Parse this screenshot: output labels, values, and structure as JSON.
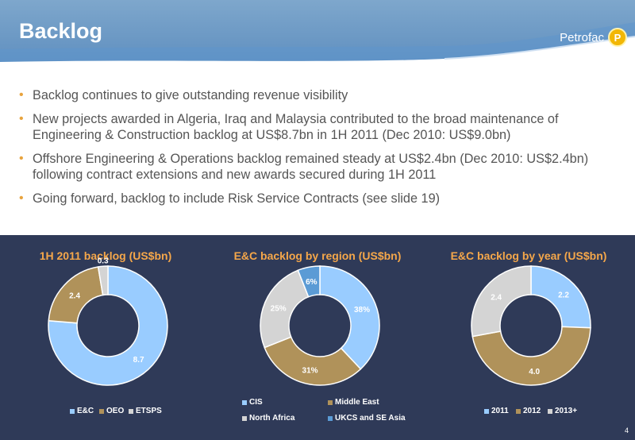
{
  "header": {
    "title": "Backlog",
    "brand": "Petrofac",
    "logo_letter": "P"
  },
  "bullets": [
    "Backlog continues to give outstanding revenue visibility",
    "New projects awarded in Algeria, Iraq and Malaysia contributed to the broad maintenance of Engineering & Construction backlog at US$8.7bn in 1H 2011 (Dec 2010: US$9.0bn)",
    "Offshore Engineering & Operations backlog remained steady at US$2.4bn (Dec 2010: US$2.4bn) following contract extensions and new awards secured during 1H 2011",
    "Going forward, backlog to include Risk Service Contracts (see slide 19)"
  ],
  "colors": {
    "blue": "#99ccff",
    "tan": "#b0925a",
    "gray": "#d4d4d4",
    "midblue": "#5b9bd5",
    "accent": "#f5a74a",
    "panel": "#2f3a58"
  },
  "chart_data": [
    {
      "type": "pie",
      "title": "1H 2011 backlog (US$bn)",
      "categories": [
        "E&C",
        "OEO",
        "ETSPS"
      ],
      "values": [
        8.7,
        2.4,
        0.3
      ],
      "labels": [
        "8.7",
        "2.4",
        "0.3"
      ]
    },
    {
      "type": "pie",
      "title": "E&C backlog by region (US$bn)",
      "categories": [
        "CIS",
        "Middle East",
        "North Africa",
        "UKCS and SE Asia"
      ],
      "values": [
        38,
        31,
        25,
        6
      ],
      "labels": [
        "38%",
        "31%",
        "25%",
        "6%"
      ]
    },
    {
      "type": "pie",
      "title": "E&C backlog by year (US$bn)",
      "categories": [
        "2011",
        "2012",
        "2013+"
      ],
      "values": [
        2.2,
        4.0,
        2.4
      ],
      "labels": [
        "2.2",
        "4.0",
        "2.4"
      ]
    }
  ],
  "page_number": "4"
}
